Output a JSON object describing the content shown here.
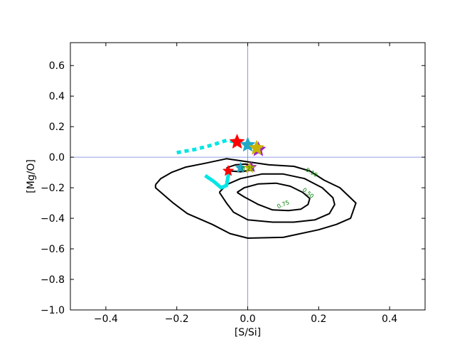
{
  "chart_data": {
    "type": "line",
    "title": "",
    "xlabel": "[S/Si]",
    "ylabel": "[Mg/O]",
    "xlim": [
      -0.5,
      0.5
    ],
    "ylim": [
      -1.0,
      0.75
    ],
    "xticks": [
      -0.4,
      -0.2,
      0.0,
      0.2,
      0.4
    ],
    "xtick_labels": [
      "−0.4",
      "−0.2",
      "0.0",
      "0.2",
      "0.4"
    ],
    "yticks": [
      -1.0,
      -0.8,
      -0.6,
      -0.4,
      -0.2,
      0.0,
      0.2,
      0.4,
      0.6
    ],
    "ytick_labels": [
      "−1.0",
      "−0.8",
      "−0.6",
      "−0.4",
      "−0.2",
      "0.0",
      "0.2",
      "0.4",
      "0.6"
    ],
    "grid": false,
    "reference_lines": {
      "x": 0.0,
      "y": 0.0,
      "color": "#6f7fe0"
    },
    "contours": [
      {
        "level": "0.10",
        "color": "#000000",
        "points": [
          [
            -0.26,
            -0.18
          ],
          [
            -0.245,
            -0.14
          ],
          [
            -0.215,
            -0.1
          ],
          [
            -0.175,
            -0.065
          ],
          [
            -0.12,
            -0.04
          ],
          [
            -0.06,
            -0.01
          ],
          [
            0.0,
            -0.03
          ],
          [
            0.06,
            -0.05
          ],
          [
            0.13,
            -0.06
          ],
          [
            0.175,
            -0.09
          ],
          [
            0.215,
            -0.15
          ],
          [
            0.26,
            -0.2
          ],
          [
            0.305,
            -0.3
          ],
          [
            0.29,
            -0.4
          ],
          [
            0.25,
            -0.44
          ],
          [
            0.2,
            -0.475
          ],
          [
            0.1,
            -0.525
          ],
          [
            0.0,
            -0.53
          ],
          [
            -0.05,
            -0.5
          ],
          [
            -0.1,
            -0.44
          ],
          [
            -0.17,
            -0.37
          ],
          [
            -0.21,
            -0.3
          ],
          [
            -0.26,
            -0.2
          ],
          [
            -0.26,
            -0.18
          ]
        ]
      },
      {
        "level": "0.50",
        "color": "#000000",
        "points": [
          [
            -0.08,
            -0.23
          ],
          [
            -0.06,
            -0.18
          ],
          [
            -0.02,
            -0.14
          ],
          [
            0.04,
            -0.11
          ],
          [
            0.1,
            -0.11
          ],
          [
            0.16,
            -0.14
          ],
          [
            0.21,
            -0.2
          ],
          [
            0.24,
            -0.265
          ],
          [
            0.245,
            -0.31
          ],
          [
            0.23,
            -0.37
          ],
          [
            0.19,
            -0.41
          ],
          [
            0.13,
            -0.425
          ],
          [
            0.07,
            -0.425
          ],
          [
            0.0,
            -0.41
          ],
          [
            -0.04,
            -0.36
          ],
          [
            -0.06,
            -0.3
          ],
          [
            -0.08,
            -0.23
          ]
        ]
      },
      {
        "level": "0.75",
        "color": "#000000",
        "points": [
          [
            -0.03,
            -0.23
          ],
          [
            -0.01,
            -0.2
          ],
          [
            0.03,
            -0.175
          ],
          [
            0.08,
            -0.17
          ],
          [
            0.12,
            -0.19
          ],
          [
            0.155,
            -0.23
          ],
          [
            0.175,
            -0.27
          ],
          [
            0.17,
            -0.31
          ],
          [
            0.15,
            -0.34
          ],
          [
            0.115,
            -0.35
          ],
          [
            0.07,
            -0.345
          ],
          [
            0.03,
            -0.31
          ],
          [
            -0.01,
            -0.26
          ],
          [
            -0.03,
            -0.23
          ]
        ]
      },
      {
        "level": "0.25",
        "color": "#000000",
        "points": [
          [
            -0.06,
            -0.07
          ],
          [
            -0.035,
            -0.05
          ],
          [
            -0.005,
            -0.045
          ],
          [
            0.015,
            -0.06
          ],
          [
            0.01,
            -0.085
          ],
          [
            -0.02,
            -0.095
          ],
          [
            -0.05,
            -0.09
          ],
          [
            -0.06,
            -0.07
          ]
        ]
      }
    ],
    "contour_labels": [
      {
        "text": "0.10",
        "x": 0.18,
        "y": -0.1,
        "rotate": 30
      },
      {
        "text": "0.50",
        "x": 0.17,
        "y": -0.235,
        "rotate": 40
      },
      {
        "text": "0.75",
        "x": 0.1,
        "y": -0.31,
        "rotate": -22
      },
      {
        "text": "0.25",
        "x": 0.0,
        "y": -0.075,
        "rotate": 0
      }
    ],
    "series": [
      {
        "style": "dotted",
        "color": "#00e5e5",
        "points": [
          [
            -0.2,
            0.03
          ],
          [
            -0.15,
            0.05
          ],
          [
            -0.1,
            0.08
          ],
          [
            -0.06,
            0.11
          ],
          [
            -0.03,
            0.1
          ]
        ]
      },
      {
        "style": "solid",
        "color": "#00e5e5",
        "points": [
          [
            -0.12,
            -0.12
          ],
          [
            -0.095,
            -0.16
          ],
          [
            -0.075,
            -0.2
          ],
          [
            -0.06,
            -0.185
          ],
          [
            -0.055,
            -0.12
          ],
          [
            -0.05,
            -0.09
          ]
        ]
      }
    ],
    "star_markers": [
      {
        "x": -0.03,
        "y": 0.1,
        "color": "#ff0000",
        "size": "large"
      },
      {
        "x": 0.0,
        "y": 0.08,
        "color": "#1fa8c8",
        "size": "large"
      },
      {
        "x": 0.03,
        "y": 0.05,
        "color": "#a020c8",
        "size": "large"
      },
      {
        "x": 0.025,
        "y": 0.06,
        "color": "#c8b400",
        "size": "large"
      },
      {
        "x": -0.055,
        "y": -0.09,
        "color": "#ff0000",
        "size": "small"
      },
      {
        "x": -0.02,
        "y": -0.07,
        "color": "#1fa8c8",
        "size": "small"
      },
      {
        "x": 0.01,
        "y": -0.065,
        "color": "#a020c8",
        "size": "small"
      },
      {
        "x": 0.005,
        "y": -0.07,
        "color": "#c8b400",
        "size": "small"
      }
    ]
  }
}
